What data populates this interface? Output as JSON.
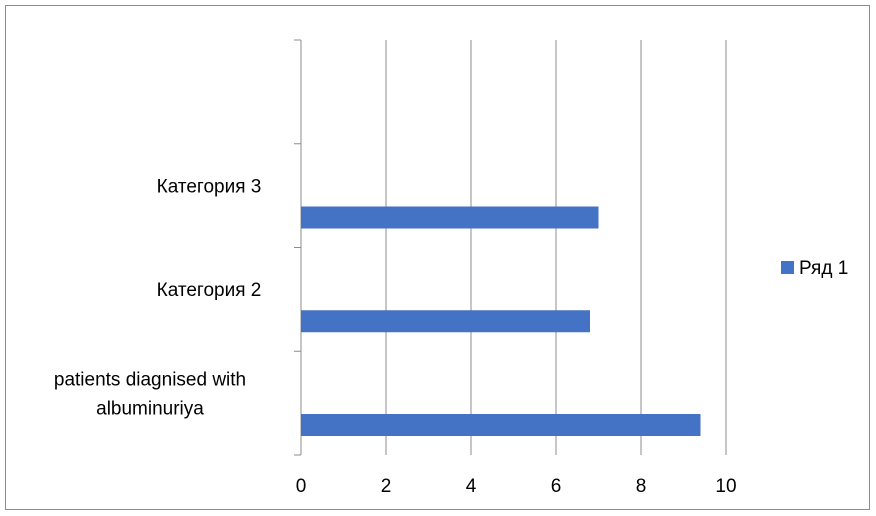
{
  "chart_data": {
    "type": "bar",
    "orientation": "horizontal",
    "title": "",
    "xlabel": "",
    "ylabel": "",
    "categories": [
      "patients diagnised with albuminuriya",
      "Категория 2",
      "Категория 3",
      ""
    ],
    "category_label_lines": [
      [
        "patients diagnised with",
        "albuminuriya"
      ],
      [
        "Категория 2"
      ],
      [
        "Категория 3"
      ],
      []
    ],
    "series": [
      {
        "name": "Ряд 1",
        "color": "#4472c4",
        "values": [
          9.4,
          6.8,
          7.0,
          null
        ]
      }
    ],
    "xlim": [
      0,
      10
    ],
    "x_ticks": [
      "0",
      "2",
      "4",
      "6",
      "8",
      "10"
    ],
    "grid": "vertical",
    "legend_position": "right"
  }
}
